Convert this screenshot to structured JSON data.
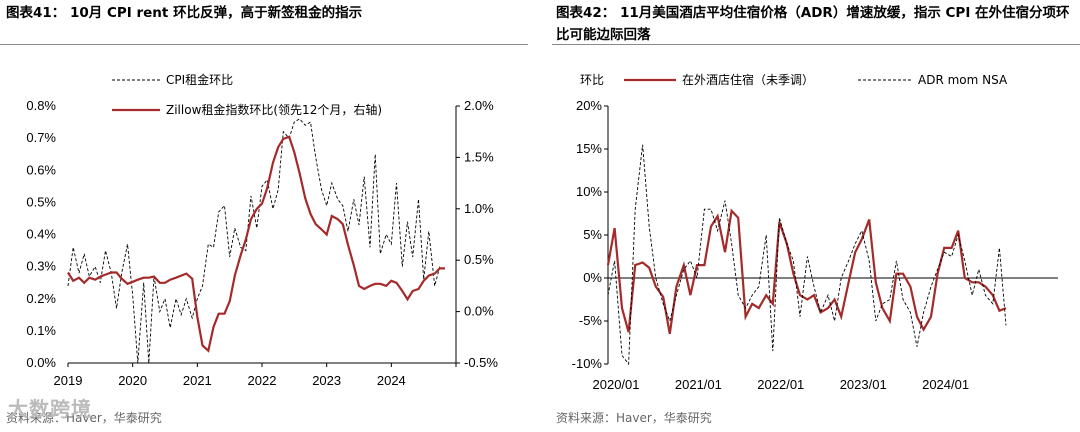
{
  "left_title": "图表41： 10月 CPI rent 环比反弹，高于新签租金的指示",
  "right_title": "图表42： 11月美国酒店平均住宿价格（ADR）增速放缓，指示 CPI 在外住宿分项环比可能边际回落",
  "left_source": "资料来源：Haver，华泰研究",
  "right_source": "资料来源：Haver，华泰研究",
  "watermark": "大数跨境",
  "colors": {
    "dashed": "#000000",
    "solid": "#A52A2A",
    "axis": "#000000"
  },
  "chart_data": [
    {
      "type": "line",
      "title": "10月 CPI rent 环比反弹，高于新签租金的指示",
      "x_ticks": [
        "2019",
        "2020",
        "2021",
        "2022",
        "2023",
        "2024"
      ],
      "x_range": [
        2019.0,
        2025.0
      ],
      "y_left": {
        "range": [
          0.0,
          0.8
        ],
        "ticks": [
          "0.0%",
          "0.1%",
          "0.2%",
          "0.3%",
          "0.4%",
          "0.5%",
          "0.6%",
          "0.7%",
          "0.8%"
        ]
      },
      "y_right": {
        "range": [
          -0.5,
          2.0
        ],
        "ticks": [
          "-0.5%",
          "0.0%",
          "0.5%",
          "1.0%",
          "1.5%",
          "2.0%"
        ]
      },
      "series": [
        {
          "name": "CPI租金环比",
          "style": "dashed",
          "axis": "left",
          "x": [
            2019.0,
            2019.08,
            2019.17,
            2019.25,
            2019.33,
            2019.42,
            2019.5,
            2019.58,
            2019.67,
            2019.75,
            2019.83,
            2019.92,
            2020.0,
            2020.08,
            2020.17,
            2020.25,
            2020.33,
            2020.42,
            2020.5,
            2020.58,
            2020.67,
            2020.75,
            2020.83,
            2020.92,
            2021.0,
            2021.08,
            2021.17,
            2021.25,
            2021.33,
            2021.42,
            2021.5,
            2021.58,
            2021.67,
            2021.75,
            2021.83,
            2021.92,
            2022.0,
            2022.08,
            2022.17,
            2022.25,
            2022.33,
            2022.42,
            2022.5,
            2022.58,
            2022.67,
            2022.75,
            2022.83,
            2022.92,
            2023.0,
            2023.08,
            2023.17,
            2023.25,
            2023.33,
            2023.42,
            2023.5,
            2023.58,
            2023.67,
            2023.75,
            2023.83,
            2023.92,
            2024.0,
            2024.08,
            2024.17,
            2024.25,
            2024.33,
            2024.42,
            2024.5,
            2024.58,
            2024.67,
            2024.75
          ],
          "values": [
            0.24,
            0.36,
            0.28,
            0.34,
            0.27,
            0.3,
            0.25,
            0.35,
            0.28,
            0.17,
            0.28,
            0.37,
            0.21,
            0.0,
            0.25,
            0.0,
            0.27,
            0.16,
            0.2,
            0.11,
            0.2,
            0.15,
            0.2,
            0.14,
            0.2,
            0.24,
            0.37,
            0.36,
            0.47,
            0.49,
            0.33,
            0.42,
            0.36,
            0.35,
            0.52,
            0.42,
            0.55,
            0.57,
            0.48,
            0.54,
            0.72,
            0.7,
            0.75,
            0.76,
            0.74,
            0.75,
            0.64,
            0.54,
            0.49,
            0.56,
            0.51,
            0.49,
            0.41,
            0.51,
            0.43,
            0.58,
            0.36,
            0.65,
            0.34,
            0.4,
            0.37,
            0.56,
            0.3,
            0.44,
            0.33,
            0.51,
            0.26,
            0.41,
            0.24,
            0.3
          ]
        },
        {
          "name": "Zillow租金指数环比(领先12个月，右轴)",
          "style": "solid",
          "axis": "right",
          "x": [
            2019.0,
            2019.08,
            2019.17,
            2019.25,
            2019.33,
            2019.42,
            2019.5,
            2019.58,
            2019.67,
            2019.75,
            2019.83,
            2019.92,
            2020.0,
            2020.08,
            2020.17,
            2020.25,
            2020.33,
            2020.42,
            2020.5,
            2020.58,
            2020.67,
            2020.75,
            2020.83,
            2020.92,
            2021.0,
            2021.08,
            2021.17,
            2021.25,
            2021.33,
            2021.42,
            2021.5,
            2021.58,
            2021.67,
            2021.75,
            2021.83,
            2021.92,
            2022.0,
            2022.08,
            2022.17,
            2022.25,
            2022.33,
            2022.42,
            2022.5,
            2022.58,
            2022.67,
            2022.75,
            2022.83,
            2022.92,
            2023.0,
            2023.08,
            2023.17,
            2023.25,
            2023.33,
            2023.42,
            2023.5,
            2023.58,
            2023.67,
            2023.75,
            2023.83,
            2023.92,
            2024.0,
            2024.08,
            2024.17,
            2024.25,
            2024.33,
            2024.42,
            2024.5,
            2024.58,
            2024.67,
            2024.75,
            2024.83
          ],
          "values": [
            0.38,
            0.3,
            0.33,
            0.28,
            0.33,
            0.31,
            0.34,
            0.36,
            0.38,
            0.38,
            0.32,
            0.27,
            0.29,
            0.31,
            0.33,
            0.33,
            0.34,
            0.28,
            0.28,
            0.31,
            0.33,
            0.35,
            0.37,
            0.32,
            -0.05,
            -0.33,
            -0.38,
            -0.15,
            -0.02,
            -0.02,
            0.1,
            0.35,
            0.55,
            0.7,
            0.9,
            1.0,
            1.05,
            1.2,
            1.45,
            1.6,
            1.68,
            1.7,
            1.55,
            1.35,
            1.1,
            0.95,
            0.85,
            0.8,
            0.75,
            0.93,
            0.9,
            0.85,
            0.65,
            0.45,
            0.25,
            0.22,
            0.25,
            0.27,
            0.27,
            0.25,
            0.3,
            0.28,
            0.2,
            0.12,
            0.2,
            0.22,
            0.3,
            0.35,
            0.37,
            0.42,
            0.42
          ]
        }
      ]
    },
    {
      "type": "line",
      "title": "11月美国酒店平均住宿价格（ADR）增速放缓",
      "ylabel": "环比",
      "x_ticks": [
        "2020/01",
        "2021/01",
        "2022/01",
        "2023/01",
        "2024/01"
      ],
      "x_range": [
        2020.0,
        2025.0
      ],
      "y": {
        "range": [
          -10,
          20
        ],
        "ticks": [
          "-10%",
          "-5%",
          "0%",
          "5%",
          "10%",
          "15%",
          "20%"
        ]
      },
      "series": [
        {
          "name": "在外酒店住宿（未季调）",
          "style": "solid",
          "x": [
            2020.0,
            2020.08,
            2020.17,
            2020.25,
            2020.33,
            2020.42,
            2020.5,
            2020.58,
            2020.67,
            2020.75,
            2020.83,
            2020.92,
            2021.0,
            2021.08,
            2021.17,
            2021.25,
            2021.33,
            2021.42,
            2021.5,
            2021.58,
            2021.67,
            2021.75,
            2021.83,
            2021.92,
            2022.0,
            2022.08,
            2022.17,
            2022.25,
            2022.33,
            2022.42,
            2022.5,
            2022.58,
            2022.67,
            2022.75,
            2022.83,
            2022.92,
            2023.0,
            2023.08,
            2023.17,
            2023.25,
            2023.33,
            2023.42,
            2023.5,
            2023.58,
            2023.67,
            2023.75,
            2023.83,
            2023.92,
            2024.0,
            2024.08,
            2024.17,
            2024.25,
            2024.33,
            2024.42,
            2024.5,
            2024.58,
            2024.67,
            2024.75,
            2024.83
          ],
          "values": [
            1.5,
            5.8,
            -3.5,
            -6.3,
            1.5,
            1.8,
            1.2,
            -1.0,
            -2.2,
            -6.5,
            -1.0,
            1.5,
            -2.0,
            1.5,
            1.5,
            6.0,
            7.2,
            3.0,
            7.8,
            7.0,
            -4.5,
            -3.0,
            -3.5,
            -2.0,
            -3.0,
            6.5,
            4.0,
            0.5,
            -2.0,
            -2.5,
            -2.0,
            -4.0,
            -3.5,
            -2.5,
            -4.5,
            -0.5,
            3.0,
            4.5,
            6.8,
            -0.5,
            -3.5,
            -5.0,
            0.5,
            0.5,
            -1.0,
            -4.5,
            -6.0,
            -4.5,
            0.5,
            3.5,
            3.5,
            5.5,
            0.0,
            -0.5,
            -0.5,
            -1.0,
            -2.0,
            -3.8,
            -3.5
          ]
        },
        {
          "name": "ADR mom NSA",
          "style": "dashed",
          "x": [
            2020.0,
            2020.08,
            2020.17,
            2020.25,
            2020.33,
            2020.42,
            2020.5,
            2020.58,
            2020.67,
            2020.75,
            2020.83,
            2020.92,
            2021.0,
            2021.08,
            2021.17,
            2021.25,
            2021.33,
            2021.42,
            2021.5,
            2021.58,
            2021.67,
            2021.75,
            2021.83,
            2021.92,
            2022.0,
            2022.08,
            2022.17,
            2022.25,
            2022.33,
            2022.42,
            2022.5,
            2022.58,
            2022.67,
            2022.75,
            2022.83,
            2022.92,
            2023.0,
            2023.08,
            2023.17,
            2023.25,
            2023.33,
            2023.42,
            2023.5,
            2023.58,
            2023.67,
            2023.75,
            2023.83,
            2023.92,
            2024.0,
            2024.08,
            2024.17,
            2024.25,
            2024.33,
            2024.42,
            2024.5,
            2024.58,
            2024.67,
            2024.75,
            2024.83
          ],
          "values": [
            -2.0,
            2.0,
            -9.0,
            -10.0,
            8.0,
            15.5,
            6.0,
            0.0,
            -3.0,
            -5.0,
            -2.0,
            1.0,
            2.0,
            0.0,
            8.0,
            8.0,
            5.5,
            9.0,
            4.0,
            -2.0,
            -3.5,
            -2.0,
            -1.0,
            5.0,
            -8.5,
            7.0,
            4.0,
            2.0,
            -4.5,
            2.5,
            -1.0,
            -4.0,
            -2.0,
            -5.0,
            0.0,
            2.0,
            4.0,
            5.5,
            2.0,
            -5.0,
            -3.0,
            -2.5,
            2.0,
            -2.5,
            -4.0,
            -8.0,
            -4.0,
            -1.0,
            1.0,
            3.0,
            2.5,
            5.0,
            2.0,
            -2.0,
            1.0,
            -2.0,
            -3.0,
            3.5,
            -5.5
          ]
        }
      ]
    }
  ]
}
